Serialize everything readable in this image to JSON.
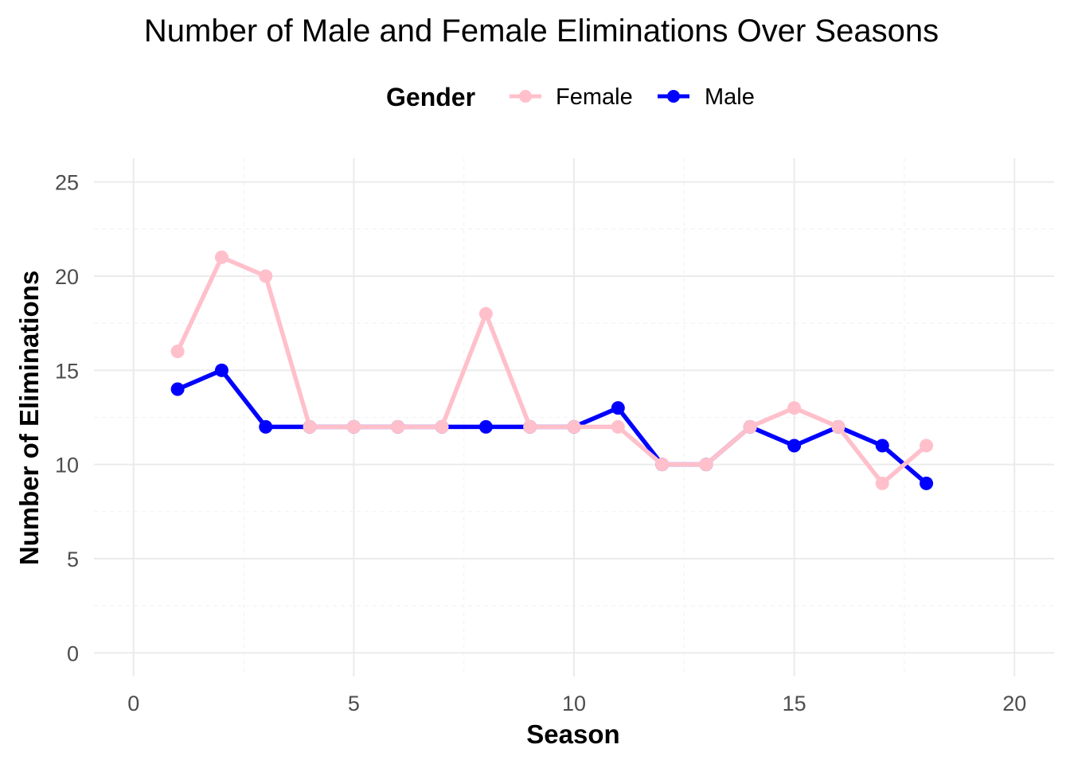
{
  "chart_data": {
    "type": "line",
    "title": "Number of Male and Female Eliminations Over Seasons",
    "xlabel": "Season",
    "ylabel": "Number of Eliminations",
    "legend": {
      "title": "Gender",
      "placement": "top-center"
    },
    "xlim": [
      -0.9,
      20.9
    ],
    "ylim": [
      -1.25,
      26.25
    ],
    "x_ticks": [
      0,
      5,
      10,
      15,
      20
    ],
    "y_ticks": [
      0,
      5,
      10,
      15,
      20,
      25
    ],
    "x_tick_labels": [
      "0",
      "5",
      "10",
      "15",
      "20"
    ],
    "y_tick_labels": [
      "0",
      "5",
      "10",
      "15",
      "20",
      "25"
    ],
    "grid": true,
    "series": [
      {
        "name": "Female",
        "color": "#FFC0CB",
        "x": [
          1,
          2,
          3,
          4,
          5,
          6,
          7,
          8,
          9,
          10,
          11,
          12,
          13,
          14,
          15,
          16,
          17,
          18
        ],
        "values": [
          16,
          21,
          20,
          12,
          12,
          12,
          12,
          18,
          12,
          12,
          12,
          10,
          10,
          12,
          13,
          12,
          9,
          11
        ]
      },
      {
        "name": "Male",
        "color": "#0000FF",
        "x": [
          1,
          2,
          3,
          4,
          5,
          6,
          7,
          8,
          9,
          10,
          11,
          12,
          13,
          14,
          15,
          16,
          17,
          18
        ],
        "values": [
          14,
          15,
          12,
          12,
          12,
          12,
          12,
          12,
          12,
          12,
          13,
          10,
          10,
          12,
          11,
          12,
          11,
          9
        ]
      }
    ]
  }
}
